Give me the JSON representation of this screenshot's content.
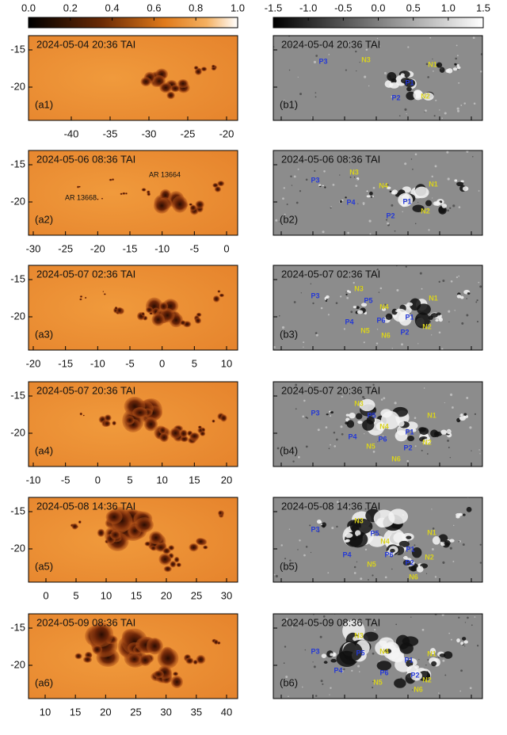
{
  "colorbars": [
    {
      "ticks": [
        "0.0",
        "0.2",
        "0.4",
        "0.6",
        "0.8",
        "1.0"
      ]
    },
    {
      "ticks": [
        "-1.5",
        "-1.0",
        "-0.5",
        "0.0",
        "0.5",
        "1.0",
        "1.5"
      ]
    }
  ],
  "panels_a": [
    {
      "timestamp": "2024-05-04 20:36 TAI",
      "label": "(a1)",
      "xticks": [
        "-40",
        "-35",
        "-30",
        "-25",
        "-20"
      ],
      "yticks": [
        "-15",
        "-20"
      ]
    },
    {
      "timestamp": "2024-05-06 08:36 TAI",
      "label": "(a2)",
      "xticks": [
        "-30",
        "-25",
        "-20",
        "-15",
        "-10",
        "-5",
        "0"
      ],
      "yticks": [
        "-15",
        "-20"
      ],
      "annotations": [
        "AR 13664",
        "AR 13668"
      ]
    },
    {
      "timestamp": "2024-05-07 02:36 TAI",
      "label": "(a3)",
      "xticks": [
        "-20",
        "-15",
        "-10",
        "-5",
        "0",
        "5",
        "10"
      ],
      "yticks": [
        "-15",
        "-20"
      ]
    },
    {
      "timestamp": "2024-05-07 20:36 TAI",
      "label": "(a4)",
      "xticks": [
        "-10",
        "-5",
        "0",
        "5",
        "10",
        "15",
        "20"
      ],
      "yticks": [
        "-15",
        "-20"
      ]
    },
    {
      "timestamp": "2024-05-08 14:36 TAI",
      "label": "(a5)",
      "xticks": [
        "0",
        "5",
        "10",
        "15",
        "20",
        "25",
        "30"
      ],
      "yticks": [
        "-15",
        "-20"
      ]
    },
    {
      "timestamp": "2024-05-09 08:36 TAI",
      "label": "(a6)",
      "xticks": [
        "10",
        "15",
        "20",
        "25",
        "30",
        "35",
        "40"
      ],
      "yticks": [
        "-15",
        "-20"
      ]
    }
  ],
  "panels_b": [
    {
      "timestamp": "2024-05-04 20:36 TAI",
      "label": "(b1)",
      "polarities": [
        "P3",
        "N3",
        "N1",
        "P1",
        "P2",
        "N2"
      ]
    },
    {
      "timestamp": "2024-05-06 08:36 TAI",
      "label": "(b2)",
      "polarities": [
        "P3",
        "N3",
        "N4",
        "N1",
        "P4",
        "P1",
        "P2",
        "N2"
      ]
    },
    {
      "timestamp": "2024-05-07 02:36 TAI",
      "label": "(b3)",
      "polarities": [
        "P3",
        "N3",
        "P5",
        "N4",
        "N1",
        "P4",
        "P6",
        "P1",
        "N5",
        "N6",
        "P2",
        "N2"
      ]
    },
    {
      "timestamp": "2024-05-07 20:36 TAI",
      "label": "(b4)",
      "polarities": [
        "P3",
        "N3",
        "P5",
        "N4",
        "N1",
        "P4",
        "P6",
        "P1",
        "N5",
        "P2",
        "N2",
        "N6"
      ]
    },
    {
      "timestamp": "2024-05-08 14:36 TAI",
      "label": "(b5)",
      "polarities": [
        "P3",
        "N3",
        "P5",
        "N4",
        "N1",
        "P4",
        "P6",
        "P1",
        "N5",
        "P2",
        "N2",
        "N6"
      ]
    },
    {
      "timestamp": "2024-05-09 08:36 TAI",
      "label": "(b6)",
      "polarities": [
        "P3",
        "N3",
        "P5",
        "N4",
        "N1",
        "P4",
        "P1",
        "P6",
        "N5",
        "P2",
        "N2",
        "N6"
      ]
    }
  ]
}
